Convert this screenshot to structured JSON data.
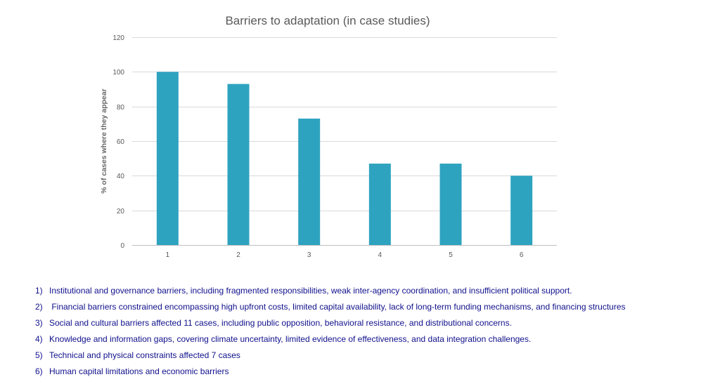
{
  "chart_data": {
    "type": "bar",
    "title": "Barriers to adaptation (in case studies)",
    "xlabel": "",
    "ylabel": "% of cases where they appear",
    "categories": [
      "1",
      "2",
      "3",
      "4",
      "5",
      "6"
    ],
    "values": [
      100,
      93,
      73,
      47,
      47,
      40
    ],
    "ylim": [
      0,
      120
    ],
    "yticks": [
      "0",
      "20",
      "40",
      "60",
      "80",
      "100",
      "120"
    ],
    "grid": true,
    "legend": "none",
    "bar_color": "#2ea3bf"
  },
  "notes": [
    {
      "num": "1)",
      "text": "Institutional and governance barriers, including fragmented responsibilities, weak inter-agency coordination, and insufficient political support."
    },
    {
      "num": "2)",
      "text": " Financial barriers constrained encompassing high upfront costs, limited capital availability, lack of long-term funding mechanisms, and financing structures"
    },
    {
      "num": "3)",
      "text": "Social and cultural barriers affected 11 cases, including public opposition, behavioral resistance, and distributional concerns."
    },
    {
      "num": "4)",
      "text": "Knowledge and information gaps, covering climate uncertainty, limited evidence of effectiveness, and data integration challenges."
    },
    {
      "num": "5)",
      "text": "Technical and physical constraints affected 7 cases"
    },
    {
      "num": "6)",
      "text": "Human capital limitations and economic barriers"
    }
  ],
  "colors": {
    "bar": "#2ea3bf",
    "note_text": "#10108c",
    "title": "#595959",
    "grid": "#d9d9d9"
  }
}
